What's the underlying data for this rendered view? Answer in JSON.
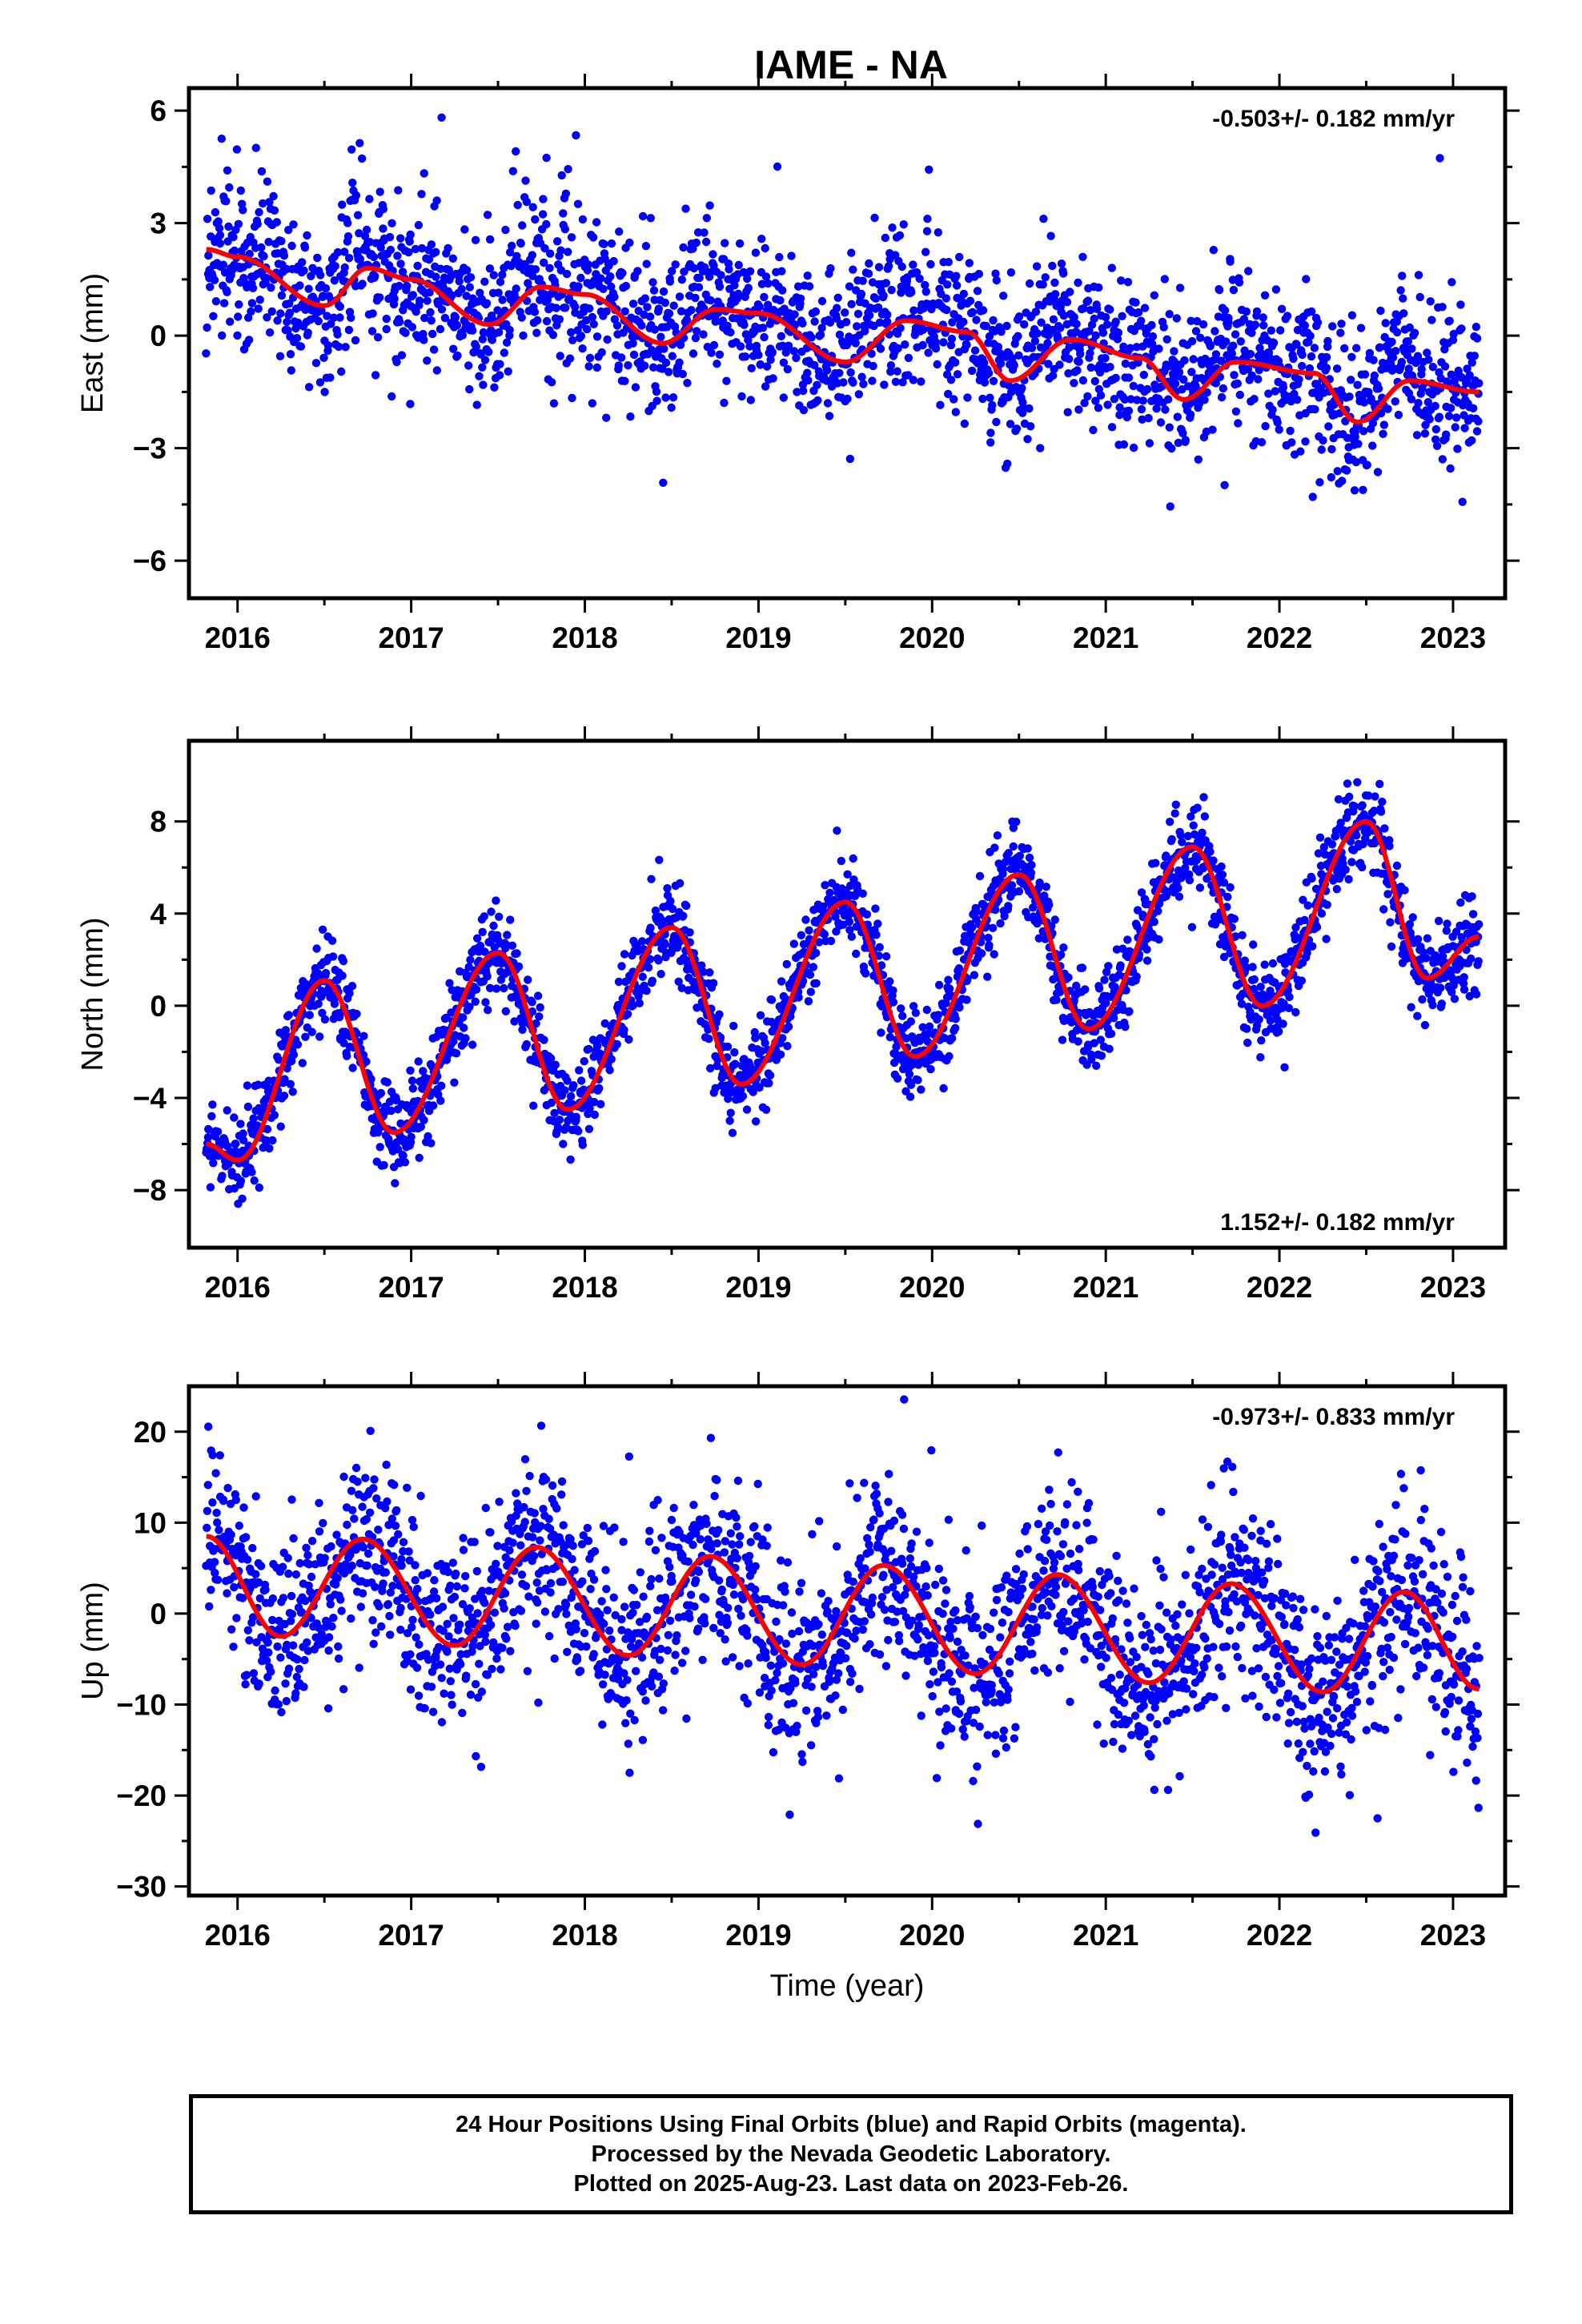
{
  "title": "IAME - NA",
  "colors": {
    "points": "#0000ff",
    "fit": "#ff0000",
    "frame": "#000000"
  },
  "chart_data": [
    {
      "type": "scatter",
      "panel": "East",
      "ylabel": "East (mm)",
      "xlabel": "",
      "xlim": [
        2015.72,
        2023.3
      ],
      "ylim": [
        -7,
        6.6
      ],
      "xticks": [
        "2016",
        "2017",
        "2018",
        "2019",
        "2020",
        "2021",
        "2022",
        "2023"
      ],
      "yticks": [
        "6",
        "3",
        "0",
        "−3",
        "−6"
      ],
      "rate_label": "-0.503+/- 0.182 mm/yr",
      "rate_position": "top-right",
      "model": {
        "t0": 2015.82,
        "t1": 2023.15,
        "ref_epoch": 2019.5,
        "offset": 0.3,
        "rate": -0.503,
        "annual": [
          0.35,
          -0.45
        ],
        "semiannual": [
          0.2,
          0.0
        ],
        "scatter_sd": 1.05,
        "seasonal_bumps": true
      },
      "fit_curve": {
        "x": [
          2015.82,
          2016.0,
          2016.5,
          2016.75,
          2017.0,
          2017.45,
          2017.75,
          2018.0,
          2018.45,
          2018.75,
          2019.0,
          2019.5,
          2019.85,
          2020.2,
          2020.45,
          2020.8,
          2021.2,
          2021.45,
          2021.75,
          2022.2,
          2022.45,
          2022.75,
          2023.15
        ],
        "y": [
          2.3,
          2.1,
          0.8,
          1.8,
          1.5,
          0.3,
          1.3,
          1.1,
          -0.2,
          0.7,
          0.6,
          -0.7,
          0.4,
          0.1,
          -1.2,
          -0.1,
          -0.6,
          -1.7,
          -0.7,
          -1.0,
          -2.3,
          -1.2,
          -1.5
        ]
      }
    },
    {
      "type": "scatter",
      "panel": "North",
      "ylabel": "North (mm)",
      "xlabel": "",
      "xlim": [
        2015.72,
        2023.3
      ],
      "ylim": [
        -10.5,
        11.5
      ],
      "xticks": [
        "2016",
        "2017",
        "2018",
        "2019",
        "2020",
        "2021",
        "2022",
        "2023"
      ],
      "yticks": [
        "8",
        "4",
        "0",
        "−4",
        "−8"
      ],
      "rate_label": "1.152+/- 0.182 mm/yr",
      "rate_position": "bottom-right",
      "model": {
        "t0": 2015.82,
        "t1": 2023.15,
        "ref_epoch": 2019.5,
        "offset": 0.8,
        "rate": 1.152,
        "annual": [
          -3.1,
          -2.6
        ],
        "semiannual": [
          0.6,
          0.4
        ],
        "scatter_sd": 0.95,
        "seasonal_bumps": false
      },
      "fit_curve": {
        "x": [
          2015.82,
          2016.0,
          2016.5,
          2016.9,
          2017.5,
          2017.9,
          2018.5,
          2018.9,
          2019.5,
          2019.9,
          2020.5,
          2020.9,
          2021.5,
          2021.9,
          2022.5,
          2022.85,
          2023.15
        ],
        "y": [
          -6.0,
          -6.7,
          1.1,
          -5.5,
          2.3,
          -4.5,
          3.4,
          -3.4,
          4.5,
          -2.2,
          5.7,
          -1.0,
          6.9,
          0.0,
          8.0,
          1.2,
          3.0
        ]
      }
    },
    {
      "type": "scatter",
      "panel": "Up",
      "ylabel": "Up (mm)",
      "xlabel": "Time (year)",
      "xlim": [
        2015.72,
        2023.3
      ],
      "ylim": [
        -31,
        25
      ],
      "xticks": [
        "2016",
        "2017",
        "2018",
        "2019",
        "2020",
        "2021",
        "2022",
        "2023"
      ],
      "yticks": [
        "20",
        "10",
        "0",
        "−10",
        "−20",
        "−30"
      ],
      "rate_label": "-0.973+/- 0.833 mm/yr",
      "rate_position": "top-right",
      "model": {
        "t0": 2015.82,
        "t1": 2023.15,
        "ref_epoch": 2019.5,
        "offset": -0.5,
        "rate": -0.973,
        "annual": [
          0.0,
          -6.0
        ],
        "semiannual": [
          0.0,
          0.0
        ],
        "scatter_sd": 5.2,
        "seasonal_bumps": false
      },
      "fit_curve": {
        "x": [
          2015.82,
          2016.25,
          2016.72,
          2017.25,
          2017.72,
          2018.25,
          2018.72,
          2019.25,
          2019.72,
          2020.25,
          2020.72,
          2021.25,
          2021.72,
          2022.25,
          2022.72,
          2023.15
        ],
        "y": [
          8.5,
          -2.5,
          8.2,
          -3.5,
          7.3,
          -4.6,
          6.3,
          -5.6,
          5.3,
          -6.6,
          4.3,
          -7.6,
          3.3,
          -8.6,
          2.4,
          -8.3
        ]
      }
    }
  ],
  "footer": {
    "line1": "24 Hour Positions Using Final Orbits (blue) and Rapid Orbits (magenta).",
    "line2": "Processed by the Nevada Geodetic Laboratory.",
    "line3": "Plotted on 2025-Aug-23. Last data on 2023-Feb-26."
  }
}
